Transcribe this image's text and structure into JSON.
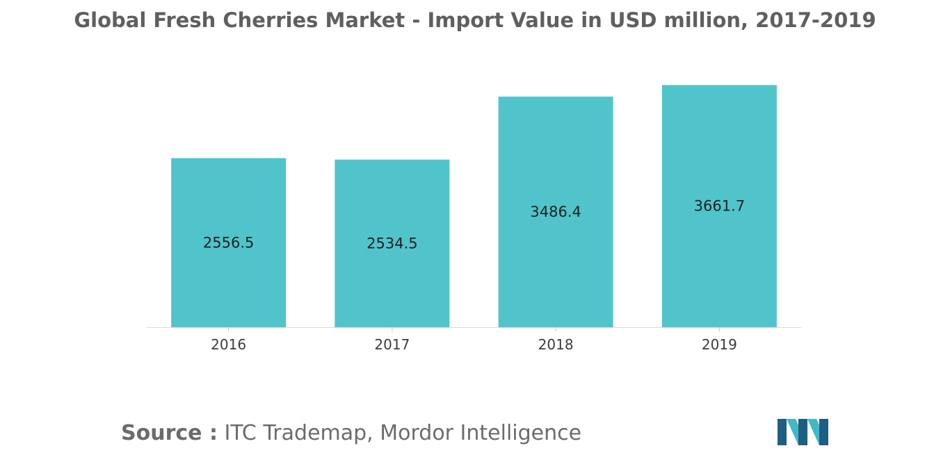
{
  "page": {
    "title": "Global Fresh Cherries Market - Import Value in USD million, 2017-2019",
    "source_label": "Source :",
    "source_text": " ITC Trademap, Mordor Intelligence"
  },
  "colors": {
    "bar": "#51C4CB",
    "logo_dark": "#1E5D84",
    "logo_light": "#43B9C4"
  },
  "chart_data": {
    "type": "bar",
    "title": "Global Fresh Cherries Market - Import Value in USD million, 2017-2019",
    "xlabel": "",
    "ylabel": "",
    "categories": [
      "2016",
      "2017",
      "2018",
      "2019"
    ],
    "values": [
      2556.5,
      2534.5,
      3486.4,
      3661.7
    ],
    "value_labels": [
      "2556.5",
      "2534.5",
      "3486.4",
      "3661.7"
    ],
    "grid": false,
    "legend": "none"
  }
}
